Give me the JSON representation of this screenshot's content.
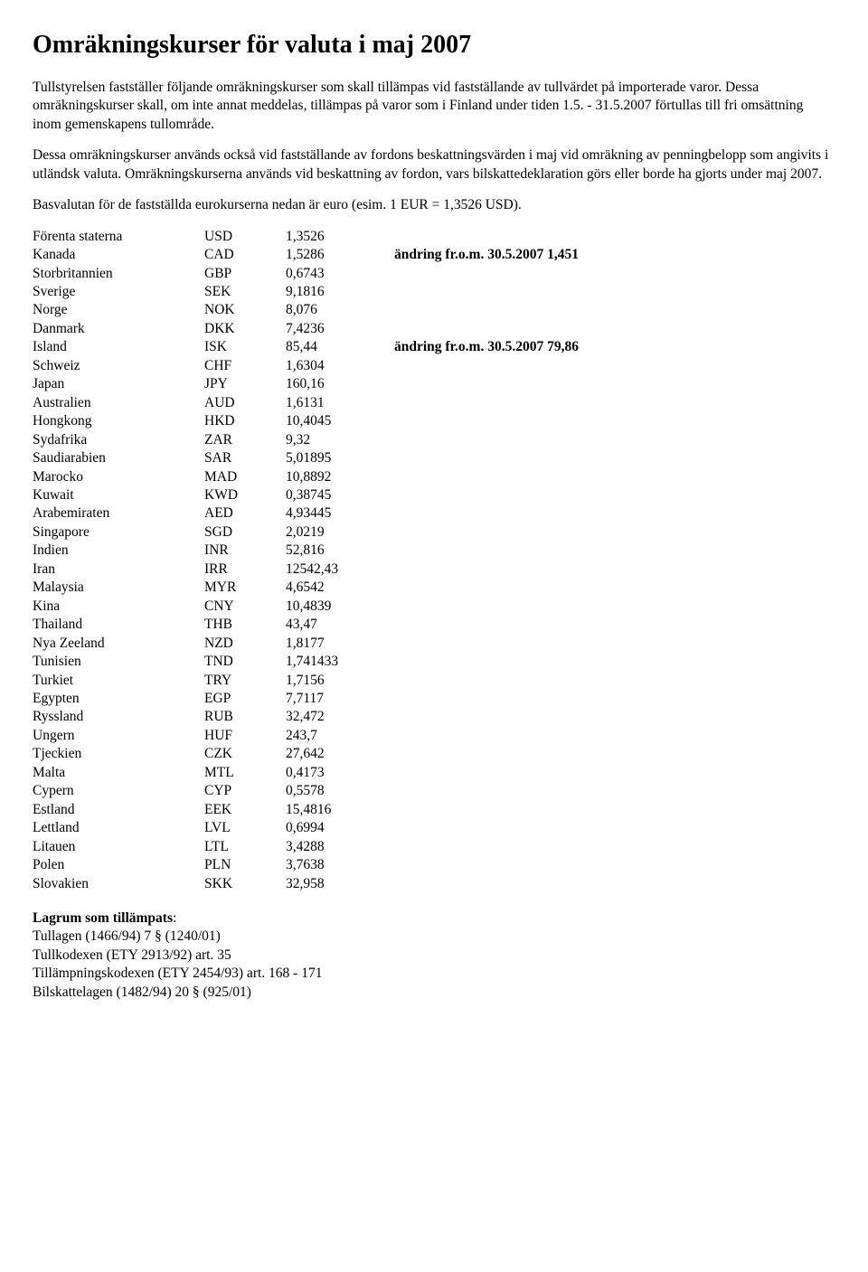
{
  "title": "Omräkningskurser för valuta i maj 2007",
  "paragraphs": {
    "p1": "Tullstyrelsen fastställer följande omräkningskurser som skall tillämpas vid fastställande av tullvärdet på importerade varor. Dessa omräkningskurser skall, om inte annat meddelas, tillämpas på varor som i Finland under tiden 1.5. - 31.5.2007 förtullas till fri omsättning inom gemenskapens tullområde.",
    "p2": "Dessa omräkningskurser används också vid fastställande av fordons beskattningsvärden i maj vid omräkning av penningbelopp som angivits i utländsk valuta. Omräkningskurserna används vid beskattning av fordon, vars bilskattedeklaration görs eller borde ha gjorts under maj 2007.",
    "p3": "Basvalutan för de fastställda eurokurserna nedan är euro (esim. 1 EUR = 1,3526 USD)."
  },
  "rows": [
    {
      "country": "Förenta staterna",
      "code": "USD",
      "rate": "1,3526",
      "note": ""
    },
    {
      "country": "Kanada",
      "code": "CAD",
      "rate": "1,5286",
      "note": "ändring fr.o.m. 30.5.2007 1,451"
    },
    {
      "country": "Storbritannien",
      "code": "GBP",
      "rate": "0,6743",
      "note": ""
    },
    {
      "country": "Sverige",
      "code": "SEK",
      "rate": "9,1816",
      "note": ""
    },
    {
      "country": "Norge",
      "code": "NOK",
      "rate": "8,076",
      "note": ""
    },
    {
      "country": "Danmark",
      "code": "DKK",
      "rate": "7,4236",
      "note": ""
    },
    {
      "country": "Island",
      "code": "ISK",
      "rate": "85,44",
      "note": "ändring fr.o.m. 30.5.2007 79,86"
    },
    {
      "country": "Schweiz",
      "code": "CHF",
      "rate": "1,6304",
      "note": ""
    },
    {
      "country": "Japan",
      "code": "JPY",
      "rate": "160,16",
      "note": ""
    },
    {
      "country": "Australien",
      "code": "AUD",
      "rate": "1,6131",
      "note": ""
    },
    {
      "country": "Hongkong",
      "code": "HKD",
      "rate": "10,4045",
      "note": ""
    },
    {
      "country": "Sydafrika",
      "code": "ZAR",
      "rate": "9,32",
      "note": ""
    },
    {
      "country": "Saudiarabien",
      "code": "SAR",
      "rate": "5,01895",
      "note": ""
    },
    {
      "country": "Marocko",
      "code": "MAD",
      "rate": "10,8892",
      "note": ""
    },
    {
      "country": "Kuwait",
      "code": "KWD",
      "rate": "0,38745",
      "note": ""
    },
    {
      "country": "Arabemiraten",
      "code": "AED",
      "rate": "4,93445",
      "note": ""
    },
    {
      "country": "Singapore",
      "code": "SGD",
      "rate": "2,0219",
      "note": ""
    },
    {
      "country": "Indien",
      "code": "INR",
      "rate": "52,816",
      "note": ""
    },
    {
      "country": "Iran",
      "code": "IRR",
      "rate": "12542,43",
      "note": ""
    },
    {
      "country": "Malaysia",
      "code": "MYR",
      "rate": "4,6542",
      "note": ""
    },
    {
      "country": "Kina",
      "code": "CNY",
      "rate": "10,4839",
      "note": ""
    },
    {
      "country": "Thailand",
      "code": "THB",
      "rate": "43,47",
      "note": ""
    },
    {
      "country": "Nya Zeeland",
      "code": "NZD",
      "rate": "1,8177",
      "note": ""
    },
    {
      "country": "Tunisien",
      "code": "TND",
      "rate": "1,741433",
      "note": ""
    },
    {
      "country": "Turkiet",
      "code": "TRY",
      "rate": "1,7156",
      "note": ""
    },
    {
      "country": "Egypten",
      "code": "EGP",
      "rate": "7,7117",
      "note": ""
    },
    {
      "country": "Ryssland",
      "code": "RUB",
      "rate": "32,472",
      "note": ""
    },
    {
      "country": "Ungern",
      "code": "HUF",
      "rate": "243,7",
      "note": ""
    },
    {
      "country": "Tjeckien",
      "code": "CZK",
      "rate": "27,642",
      "note": ""
    },
    {
      "country": "Malta",
      "code": "MTL",
      "rate": "0,4173",
      "note": ""
    },
    {
      "country": "Cypern",
      "code": "CYP",
      "rate": "0,5578",
      "note": ""
    },
    {
      "country": "Estland",
      "code": "EEK",
      "rate": "15,4816",
      "note": ""
    },
    {
      "country": "Lettland",
      "code": "LVL",
      "rate": "0,6994",
      "note": ""
    },
    {
      "country": "Litauen",
      "code": "LTL",
      "rate": "3,4288",
      "note": ""
    },
    {
      "country": "Polen",
      "code": "PLN",
      "rate": "3,7638",
      "note": ""
    },
    {
      "country": "Slovakien",
      "code": "SKK",
      "rate": "32,958",
      "note": ""
    }
  ],
  "lagrum": {
    "title": "Lagrum som tillämpats",
    "lines": [
      "Tullagen (1466/94) 7 § (1240/01)",
      "Tullkodexen (ETY 2913/92) art. 35",
      "Tillämpningskodexen (ETY 2454/93) art. 168 - 171",
      "Bilskattelagen (1482/94) 20 § (925/01)"
    ]
  }
}
